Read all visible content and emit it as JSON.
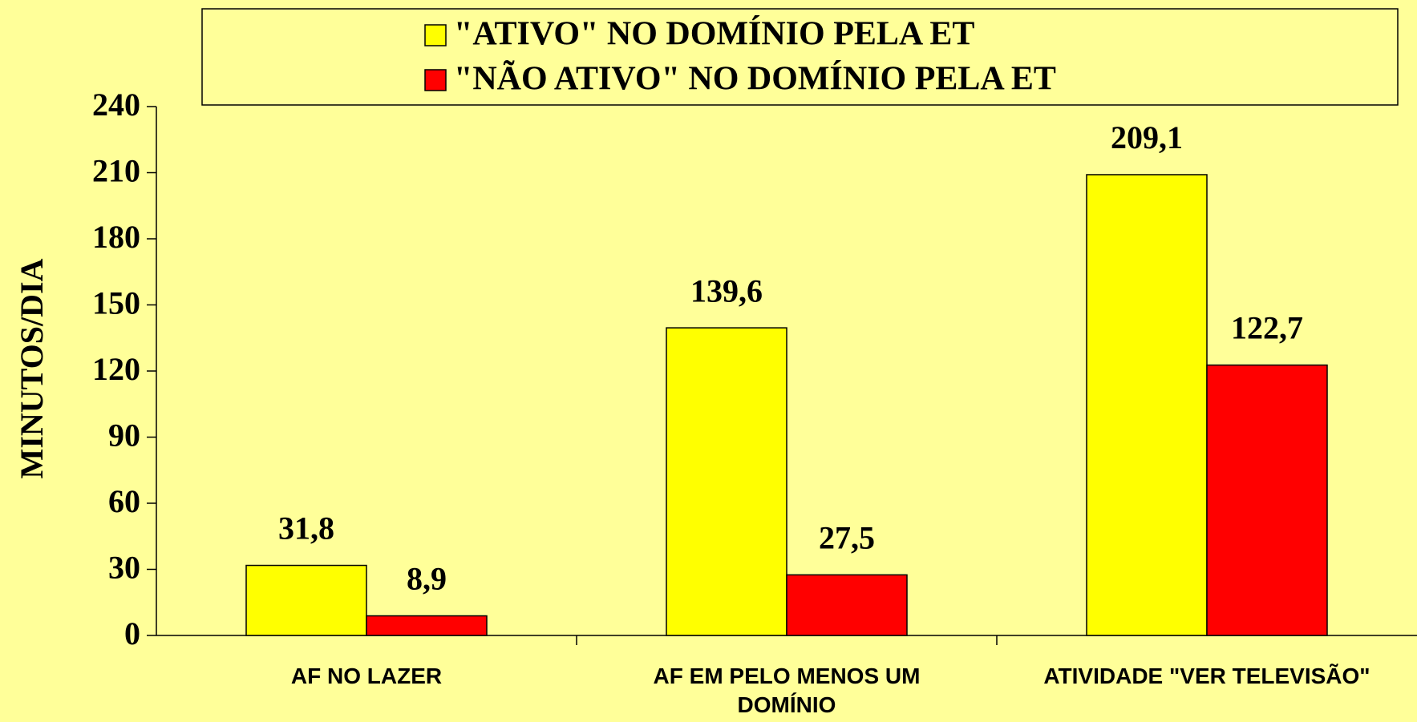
{
  "chart_data": {
    "type": "bar",
    "ylabel": "MINUTOS/DIA",
    "categories": [
      "AF NO LAZER",
      "AF EM PELO MENOS UM DOMÍNIO",
      "ATIVIDADE \"VER TELEVISÃO\""
    ],
    "series": [
      {
        "name": "\"ATIVO\" NO DOMÍNIO PELA ET",
        "color": "#ffff00",
        "values": [
          31.8,
          139.6,
          209.1
        ],
        "value_labels": [
          "31,8",
          "139,6",
          "209,1"
        ]
      },
      {
        "name": "\"NÃO ATIVO\" NO DOMÍNIO PELA ET",
        "color": "#ff0000",
        "values": [
          8.9,
          27.5,
          122.7
        ],
        "value_labels": [
          "8,9",
          "27,5",
          "122,7"
        ]
      }
    ],
    "ylim": [
      0,
      240
    ],
    "yticks": [
      0,
      30,
      60,
      90,
      120,
      150,
      180,
      210,
      240
    ],
    "grid": false,
    "legend": "top"
  }
}
